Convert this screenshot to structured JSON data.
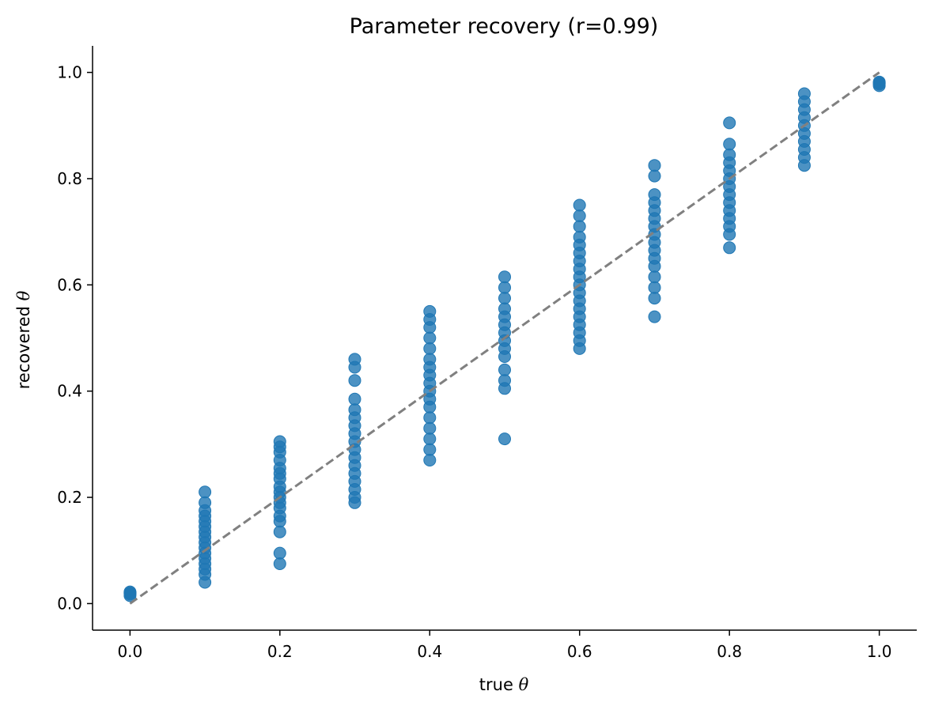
{
  "chart_data": {
    "type": "scatter",
    "title": "Parameter recovery (r=0.99)",
    "xlabel": "true",
    "ylabel": "recovered",
    "axis_symbol": "θ",
    "xlim": [
      -0.05,
      1.05
    ],
    "ylim": [
      -0.05,
      1.05
    ],
    "xticks": [
      "0.0",
      "0.2",
      "0.4",
      "0.6",
      "0.8",
      "1.0"
    ],
    "yticks": [
      "0.0",
      "0.2",
      "0.4",
      "0.6",
      "0.8",
      "1.0"
    ],
    "grid": false,
    "point_color": "#1f77b4",
    "reference_line": {
      "style": "dashed",
      "color": "#808080",
      "x": [
        0,
        1
      ],
      "y": [
        0,
        1
      ]
    },
    "series": [
      {
        "points": [
          [
            0.0,
            0.02
          ],
          [
            0.0,
            0.015
          ],
          [
            0.0,
            0.022
          ],
          [
            0.0,
            0.018
          ],
          [
            0.0,
            0.02
          ],
          [
            0.1,
            0.21
          ],
          [
            0.1,
            0.19
          ],
          [
            0.1,
            0.175
          ],
          [
            0.1,
            0.165
          ],
          [
            0.1,
            0.155
          ],
          [
            0.1,
            0.145
          ],
          [
            0.1,
            0.135
          ],
          [
            0.1,
            0.125
          ],
          [
            0.1,
            0.115
          ],
          [
            0.1,
            0.105
          ],
          [
            0.1,
            0.095
          ],
          [
            0.1,
            0.085
          ],
          [
            0.1,
            0.075
          ],
          [
            0.1,
            0.065
          ],
          [
            0.1,
            0.055
          ],
          [
            0.1,
            0.04
          ],
          [
            0.2,
            0.305
          ],
          [
            0.2,
            0.295
          ],
          [
            0.2,
            0.285
          ],
          [
            0.2,
            0.27
          ],
          [
            0.2,
            0.255
          ],
          [
            0.2,
            0.245
          ],
          [
            0.2,
            0.235
          ],
          [
            0.2,
            0.22
          ],
          [
            0.2,
            0.21
          ],
          [
            0.2,
            0.2
          ],
          [
            0.2,
            0.19
          ],
          [
            0.2,
            0.18
          ],
          [
            0.2,
            0.165
          ],
          [
            0.2,
            0.155
          ],
          [
            0.2,
            0.135
          ],
          [
            0.2,
            0.095
          ],
          [
            0.2,
            0.075
          ],
          [
            0.3,
            0.46
          ],
          [
            0.3,
            0.445
          ],
          [
            0.3,
            0.42
          ],
          [
            0.3,
            0.385
          ],
          [
            0.3,
            0.365
          ],
          [
            0.3,
            0.35
          ],
          [
            0.3,
            0.335
          ],
          [
            0.3,
            0.32
          ],
          [
            0.3,
            0.305
          ],
          [
            0.3,
            0.29
          ],
          [
            0.3,
            0.275
          ],
          [
            0.3,
            0.26
          ],
          [
            0.3,
            0.245
          ],
          [
            0.3,
            0.23
          ],
          [
            0.3,
            0.215
          ],
          [
            0.3,
            0.2
          ],
          [
            0.3,
            0.19
          ],
          [
            0.4,
            0.55
          ],
          [
            0.4,
            0.535
          ],
          [
            0.4,
            0.52
          ],
          [
            0.4,
            0.5
          ],
          [
            0.4,
            0.48
          ],
          [
            0.4,
            0.46
          ],
          [
            0.4,
            0.445
          ],
          [
            0.4,
            0.43
          ],
          [
            0.4,
            0.415
          ],
          [
            0.4,
            0.4
          ],
          [
            0.4,
            0.385
          ],
          [
            0.4,
            0.37
          ],
          [
            0.4,
            0.35
          ],
          [
            0.4,
            0.33
          ],
          [
            0.4,
            0.31
          ],
          [
            0.4,
            0.29
          ],
          [
            0.4,
            0.27
          ],
          [
            0.5,
            0.615
          ],
          [
            0.5,
            0.595
          ],
          [
            0.5,
            0.575
          ],
          [
            0.5,
            0.555
          ],
          [
            0.5,
            0.54
          ],
          [
            0.5,
            0.525
          ],
          [
            0.5,
            0.51
          ],
          [
            0.5,
            0.495
          ],
          [
            0.5,
            0.48
          ],
          [
            0.5,
            0.465
          ],
          [
            0.5,
            0.44
          ],
          [
            0.5,
            0.42
          ],
          [
            0.5,
            0.405
          ],
          [
            0.5,
            0.31
          ],
          [
            0.6,
            0.75
          ],
          [
            0.6,
            0.73
          ],
          [
            0.6,
            0.71
          ],
          [
            0.6,
            0.69
          ],
          [
            0.6,
            0.675
          ],
          [
            0.6,
            0.66
          ],
          [
            0.6,
            0.645
          ],
          [
            0.6,
            0.63
          ],
          [
            0.6,
            0.615
          ],
          [
            0.6,
            0.6
          ],
          [
            0.6,
            0.585
          ],
          [
            0.6,
            0.57
          ],
          [
            0.6,
            0.555
          ],
          [
            0.6,
            0.54
          ],
          [
            0.6,
            0.525
          ],
          [
            0.6,
            0.51
          ],
          [
            0.6,
            0.495
          ],
          [
            0.6,
            0.48
          ],
          [
            0.7,
            0.825
          ],
          [
            0.7,
            0.805
          ],
          [
            0.7,
            0.77
          ],
          [
            0.7,
            0.755
          ],
          [
            0.7,
            0.74
          ],
          [
            0.7,
            0.725
          ],
          [
            0.7,
            0.71
          ],
          [
            0.7,
            0.695
          ],
          [
            0.7,
            0.68
          ],
          [
            0.7,
            0.665
          ],
          [
            0.7,
            0.65
          ],
          [
            0.7,
            0.635
          ],
          [
            0.7,
            0.615
          ],
          [
            0.7,
            0.595
          ],
          [
            0.7,
            0.575
          ],
          [
            0.7,
            0.54
          ],
          [
            0.8,
            0.905
          ],
          [
            0.8,
            0.865
          ],
          [
            0.8,
            0.845
          ],
          [
            0.8,
            0.83
          ],
          [
            0.8,
            0.815
          ],
          [
            0.8,
            0.8
          ],
          [
            0.8,
            0.785
          ],
          [
            0.8,
            0.77
          ],
          [
            0.8,
            0.755
          ],
          [
            0.8,
            0.74
          ],
          [
            0.8,
            0.725
          ],
          [
            0.8,
            0.71
          ],
          [
            0.8,
            0.695
          ],
          [
            0.8,
            0.67
          ],
          [
            0.9,
            0.96
          ],
          [
            0.9,
            0.945
          ],
          [
            0.9,
            0.93
          ],
          [
            0.9,
            0.915
          ],
          [
            0.9,
            0.9
          ],
          [
            0.9,
            0.885
          ],
          [
            0.9,
            0.87
          ],
          [
            0.9,
            0.855
          ],
          [
            0.9,
            0.84
          ],
          [
            0.9,
            0.825
          ],
          [
            1.0,
            0.98
          ],
          [
            1.0,
            0.975
          ],
          [
            1.0,
            0.982
          ],
          [
            1.0,
            0.978
          ],
          [
            1.0,
            0.98
          ]
        ]
      }
    ]
  }
}
